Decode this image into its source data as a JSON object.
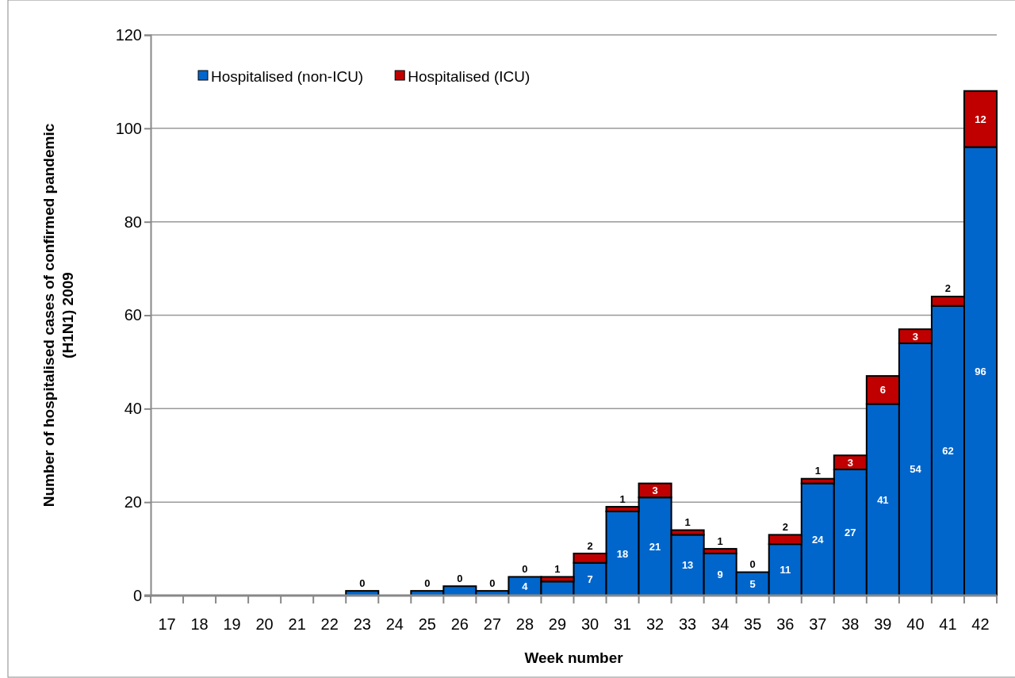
{
  "chart_data": {
    "type": "bar",
    "stacked": true,
    "xlabel": "Week number",
    "ylabel": "Number of hospitalised cases of confirmed pandemic (H1N1) 2009",
    "categories": [
      "17",
      "18",
      "19",
      "20",
      "21",
      "22",
      "23",
      "24",
      "25",
      "26",
      "27",
      "28",
      "29",
      "30",
      "31",
      "32",
      "33",
      "34",
      "35",
      "36",
      "37",
      "38",
      "39",
      "40",
      "41",
      "42"
    ],
    "series": [
      {
        "name": "Hospitalised (non-ICU)",
        "color": "#0066cc",
        "values": [
          0,
          0,
          0,
          0,
          0,
          0,
          1,
          0,
          1,
          2,
          1,
          4,
          3,
          7,
          18,
          21,
          13,
          9,
          5,
          11,
          24,
          27,
          41,
          54,
          62,
          96
        ],
        "value_labels": [
          null,
          null,
          null,
          null,
          null,
          null,
          null,
          null,
          null,
          null,
          null,
          "4",
          null,
          "7",
          "18",
          "21",
          "13",
          "9",
          "5",
          "11",
          "24",
          "27",
          "41",
          "54",
          "62",
          "96"
        ]
      },
      {
        "name": "Hospitalised (ICU)",
        "color": "#c00000",
        "values": [
          0,
          0,
          0,
          0,
          0,
          0,
          0,
          0,
          0,
          0,
          0,
          0,
          1,
          2,
          1,
          3,
          1,
          1,
          0,
          2,
          1,
          3,
          6,
          3,
          2,
          12
        ],
        "value_labels": [
          null,
          null,
          null,
          null,
          null,
          null,
          "0",
          null,
          "0",
          "0",
          "0",
          "0",
          "1",
          "2",
          "1",
          "3",
          "1",
          "1",
          "0",
          "2",
          "1",
          "3",
          "6",
          "3",
          "2",
          "12"
        ]
      }
    ],
    "ylim": [
      0,
      120
    ],
    "yticks": [
      0,
      20,
      40,
      60,
      80,
      100,
      120
    ],
    "grid": "y",
    "legend": "top left"
  }
}
